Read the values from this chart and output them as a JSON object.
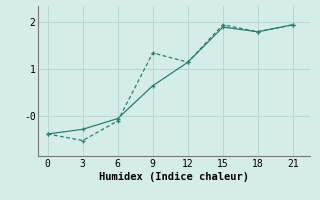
{
  "line1_x": [
    0,
    3,
    6,
    9,
    12,
    15,
    18,
    21
  ],
  "line1_y": [
    -0.38,
    -0.28,
    -0.05,
    0.65,
    1.15,
    1.9,
    1.8,
    1.95
  ],
  "line2_x": [
    0,
    3,
    6,
    9,
    12,
    15,
    18,
    21
  ],
  "line2_y": [
    -0.38,
    -0.52,
    -0.1,
    1.35,
    1.15,
    1.95,
    1.8,
    1.95
  ],
  "line_color": "#2e7d6e",
  "bg_color": "#d5ede9",
  "grid_color": "#b8d8d3",
  "xlabel": "Humidex (Indice chaleur)",
  "xticks": [
    0,
    3,
    6,
    9,
    12,
    15,
    18,
    21
  ],
  "ytick_labels": [
    "-0",
    "1",
    "2"
  ],
  "ytick_vals": [
    0.0,
    1.0,
    2.0
  ],
  "ylim": [
    -0.85,
    2.35
  ],
  "xlim": [
    -0.8,
    22.5
  ]
}
